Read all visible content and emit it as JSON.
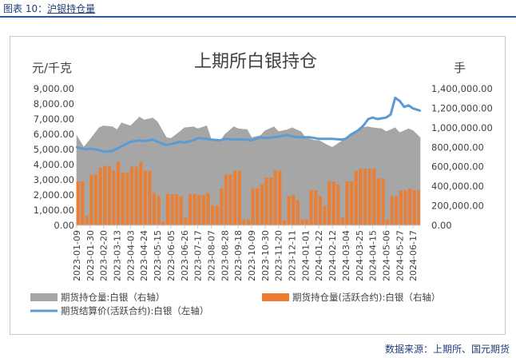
{
  "figure_caption": {
    "prefix": "图表 10：",
    "link_text": "沪银持仓量"
  },
  "source_note": "数据来源：上期所、国元期货",
  "colors": {
    "grey": "#a6a6a6",
    "orange": "#ed7d31",
    "blue": "#5b9bd5",
    "caption": "#1f3d7a"
  },
  "chart_data": {
    "type": "bar",
    "title": "上期所白银持仓",
    "left_axis": {
      "label": "元/千克",
      "ylim": [
        0,
        9000
      ],
      "ticks": [
        "0.00",
        "1,000.00",
        "2,000.00",
        "3,000.00",
        "4,000.00",
        "5,000.00",
        "6,000.00",
        "7,000.00",
        "8,000.00",
        "9,000.00"
      ]
    },
    "right_axis": {
      "label": "手",
      "ylim": [
        0,
        1400000
      ],
      "ticks": [
        "0.00",
        "200,000.00",
        "400,000.00",
        "600,000.00",
        "800,000.00",
        "1,000,000.00",
        "1,200,000.00",
        "1,400,000.00"
      ]
    },
    "x_tick_labels": [
      "2023-01-09",
      "2023-01-30",
      "2023-02-20",
      "2023-03-13",
      "2023-04-03",
      "2023-04-24",
      "2023-05-15",
      "2023-06-05",
      "2023-06-26",
      "2023-07-17",
      "2023-08-07",
      "2023-08-28",
      "2023-09-18",
      "2023-10-09",
      "2023-10-30",
      "2023-11-20",
      "2023-12-11",
      "2024-01-01",
      "2024-01-22",
      "2024-02-12",
      "2024-03-04",
      "2024-03-25",
      "2024-04-15",
      "2024-05-06",
      "2024-05-27",
      "2024-06-17"
    ],
    "x_end": "2024-06-28",
    "legend": {
      "grey": "期货持仓量:白银（右轴）",
      "orange": "期货持仓量(活跃合约):白银（右轴）",
      "blue": "期货结算价(活跃合约):白银（左轴）"
    },
    "series": [
      {
        "name": "期货持仓量:白银（右轴）",
        "type": "area",
        "axis": "right",
        "color": "#a6a6a6",
        "points": [
          [
            "2023-01-09",
            920000
          ],
          [
            "2023-01-20",
            800000
          ],
          [
            "2023-01-30",
            880000
          ],
          [
            "2023-02-13",
            1000000
          ],
          [
            "2023-02-20",
            1020000
          ],
          [
            "2023-03-06",
            1010000
          ],
          [
            "2023-03-13",
            980000
          ],
          [
            "2023-03-20",
            1050000
          ],
          [
            "2023-04-03",
            1020000
          ],
          [
            "2023-04-17",
            1110000
          ],
          [
            "2023-04-24",
            1080000
          ],
          [
            "2023-05-08",
            1100000
          ],
          [
            "2023-05-15",
            1060000
          ],
          [
            "2023-05-29",
            900000
          ],
          [
            "2023-06-05",
            890000
          ],
          [
            "2023-06-19",
            960000
          ],
          [
            "2023-06-26",
            1000000
          ],
          [
            "2023-07-10",
            1010000
          ],
          [
            "2023-07-17",
            990000
          ],
          [
            "2023-07-31",
            1020000
          ],
          [
            "2023-08-07",
            880000
          ],
          [
            "2023-08-21",
            860000
          ],
          [
            "2023-08-28",
            930000
          ],
          [
            "2023-09-11",
            1010000
          ],
          [
            "2023-09-18",
            990000
          ],
          [
            "2023-10-02",
            980000
          ],
          [
            "2023-10-09",
            900000
          ],
          [
            "2023-10-23",
            920000
          ],
          [
            "2023-10-30",
            970000
          ],
          [
            "2023-11-13",
            1010000
          ],
          [
            "2023-11-20",
            960000
          ],
          [
            "2023-12-04",
            980000
          ],
          [
            "2023-12-11",
            1000000
          ],
          [
            "2023-12-25",
            960000
          ],
          [
            "2024-01-01",
            900000
          ],
          [
            "2024-01-15",
            870000
          ],
          [
            "2024-01-22",
            870000
          ],
          [
            "2024-02-05",
            820000
          ],
          [
            "2024-02-12",
            800000
          ],
          [
            "2024-02-26",
            860000
          ],
          [
            "2024-03-04",
            900000
          ],
          [
            "2024-03-18",
            950000
          ],
          [
            "2024-03-25",
            1000000
          ],
          [
            "2024-04-08",
            1010000
          ],
          [
            "2024-04-15",
            1000000
          ],
          [
            "2024-04-29",
            990000
          ],
          [
            "2024-05-06",
            960000
          ],
          [
            "2024-05-20",
            1000000
          ],
          [
            "2024-05-27",
            950000
          ],
          [
            "2024-06-10",
            990000
          ],
          [
            "2024-06-17",
            970000
          ],
          [
            "2024-06-28",
            900000
          ]
        ]
      },
      {
        "name": "期货持仓量(活跃合约):白银（右轴）",
        "type": "bar",
        "axis": "right",
        "color": "#ed7d31",
        "points": [
          [
            "2023-01-09",
            450000
          ],
          [
            "2023-01-23",
            100000
          ],
          [
            "2023-01-30",
            520000
          ],
          [
            "2023-02-13",
            590000
          ],
          [
            "2023-02-20",
            610000
          ],
          [
            "2023-03-06",
            560000
          ],
          [
            "2023-03-13",
            650000
          ],
          [
            "2023-03-20",
            540000
          ],
          [
            "2023-04-03",
            600000
          ],
          [
            "2023-04-17",
            650000
          ],
          [
            "2023-04-24",
            560000
          ],
          [
            "2023-05-08",
            330000
          ],
          [
            "2023-05-15",
            300000
          ],
          [
            "2023-05-22",
            40000
          ],
          [
            "2023-05-29",
            320000
          ],
          [
            "2023-06-05",
            320000
          ],
          [
            "2023-06-19",
            300000
          ],
          [
            "2023-06-26",
            80000
          ],
          [
            "2023-07-03",
            320000
          ],
          [
            "2023-07-17",
            310000
          ],
          [
            "2023-07-31",
            330000
          ],
          [
            "2023-08-07",
            200000
          ],
          [
            "2023-08-21",
            380000
          ],
          [
            "2023-08-28",
            520000
          ],
          [
            "2023-09-11",
            560000
          ],
          [
            "2023-09-18",
            560000
          ],
          [
            "2023-09-25",
            60000
          ],
          [
            "2023-10-09",
            380000
          ],
          [
            "2023-10-23",
            420000
          ],
          [
            "2023-10-30",
            490000
          ],
          [
            "2023-11-13",
            560000
          ],
          [
            "2023-11-20",
            560000
          ],
          [
            "2023-11-27",
            50000
          ],
          [
            "2023-12-04",
            300000
          ],
          [
            "2023-12-11",
            310000
          ],
          [
            "2023-12-18",
            260000
          ],
          [
            "2023-12-25",
            60000
          ],
          [
            "2024-01-08",
            360000
          ],
          [
            "2024-01-22",
            300000
          ],
          [
            "2024-01-29",
            200000
          ],
          [
            "2024-02-05",
            450000
          ],
          [
            "2024-02-19",
            420000
          ],
          [
            "2024-02-26",
            80000
          ],
          [
            "2024-03-04",
            450000
          ],
          [
            "2024-03-18",
            560000
          ],
          [
            "2024-03-25",
            580000
          ],
          [
            "2024-04-08",
            580000
          ],
          [
            "2024-04-15",
            580000
          ],
          [
            "2024-04-22",
            480000
          ],
          [
            "2024-05-06",
            60000
          ],
          [
            "2024-05-13",
            300000
          ],
          [
            "2024-05-27",
            360000
          ],
          [
            "2024-06-10",
            380000
          ],
          [
            "2024-06-17",
            360000
          ],
          [
            "2024-06-28",
            300000
          ]
        ]
      },
      {
        "name": "期货结算价(活跃合约):白银（左轴）",
        "type": "line",
        "axis": "left",
        "color": "#5b9bd5",
        "points": [
          [
            "2023-01-09",
            5150
          ],
          [
            "2023-01-23",
            5000
          ],
          [
            "2023-01-30",
            5050
          ],
          [
            "2023-02-13",
            4950
          ],
          [
            "2023-02-20",
            4850
          ],
          [
            "2023-03-06",
            4900
          ],
          [
            "2023-03-13",
            5050
          ],
          [
            "2023-04-03",
            5500
          ],
          [
            "2023-04-17",
            5600
          ],
          [
            "2023-04-24",
            5550
          ],
          [
            "2023-05-08",
            5650
          ],
          [
            "2023-05-15",
            5500
          ],
          [
            "2023-05-29",
            5300
          ],
          [
            "2023-06-05",
            5350
          ],
          [
            "2023-06-19",
            5500
          ],
          [
            "2023-06-26",
            5450
          ],
          [
            "2023-07-10",
            5600
          ],
          [
            "2023-07-17",
            5750
          ],
          [
            "2023-07-31",
            5700
          ],
          [
            "2023-08-07",
            5650
          ],
          [
            "2023-08-21",
            5600
          ],
          [
            "2023-08-28",
            5700
          ],
          [
            "2023-09-11",
            5650
          ],
          [
            "2023-09-18",
            5650
          ],
          [
            "2023-10-02",
            5650
          ],
          [
            "2023-10-09",
            5600
          ],
          [
            "2023-10-23",
            5800
          ],
          [
            "2023-10-30",
            5750
          ],
          [
            "2023-11-13",
            5800
          ],
          [
            "2023-11-20",
            5850
          ],
          [
            "2023-12-04",
            5950
          ],
          [
            "2023-12-11",
            5850
          ],
          [
            "2023-12-25",
            5800
          ],
          [
            "2024-01-08",
            5800
          ],
          [
            "2024-01-22",
            5700
          ],
          [
            "2024-02-05",
            5700
          ],
          [
            "2024-02-12",
            5700
          ],
          [
            "2024-02-26",
            5650
          ],
          [
            "2024-03-04",
            5700
          ],
          [
            "2024-03-11",
            5950
          ],
          [
            "2024-03-25",
            6300
          ],
          [
            "2024-04-01",
            6600
          ],
          [
            "2024-04-08",
            7000
          ],
          [
            "2024-04-15",
            7100
          ],
          [
            "2024-04-22",
            7000
          ],
          [
            "2024-05-06",
            7100
          ],
          [
            "2024-05-13",
            7300
          ],
          [
            "2024-05-20",
            8400
          ],
          [
            "2024-05-27",
            8200
          ],
          [
            "2024-06-03",
            7800
          ],
          [
            "2024-06-10",
            7900
          ],
          [
            "2024-06-17",
            7700
          ],
          [
            "2024-06-28",
            7550
          ]
        ]
      }
    ]
  }
}
